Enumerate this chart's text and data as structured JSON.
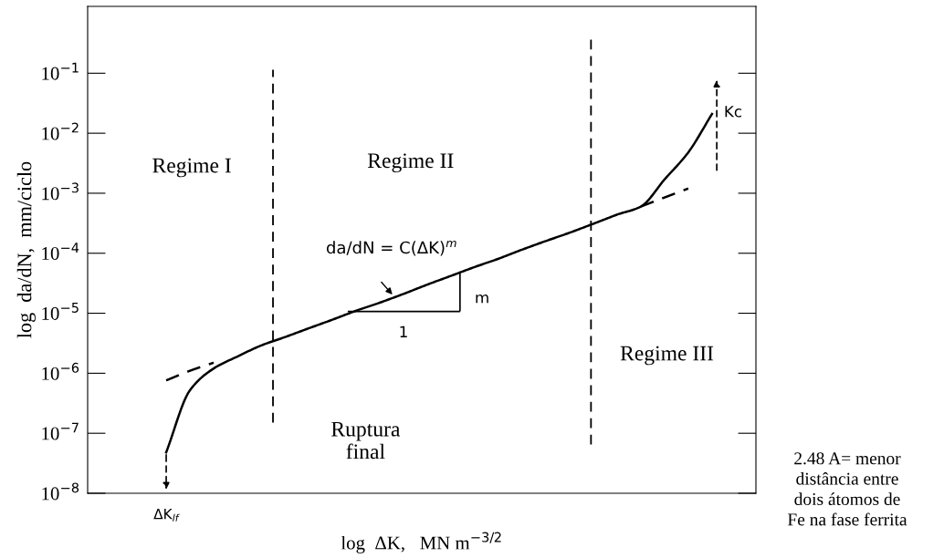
{
  "chart_data": {
    "type": "line",
    "xlabel": "log  ΔK,   MN m$^{−3/2}$",
    "ylabel": "log  da/dN,  mm/ciclo",
    "categories": [
      "ΔK$_{lf}$",
      null,
      null,
      null,
      null,
      null,
      null,
      null,
      null,
      null,
      null,
      null,
      null,
      null,
      null,
      null,
      null,
      null,
      null,
      null,
      null,
      null,
      null,
      null
    ],
    "series": [
      {
        "color": "#000000",
        "line_style": "solid",
        "values": [
          4.8e-08,
          5.2e-07,
          1.2e-06,
          1.9e-06,
          2.9e-06,
          4e-06,
          5.6e-06,
          7.8e-06,
          1.1e-05,
          1.5e-05,
          2.1e-05,
          3e-05,
          4.2e-05,
          5.9e-05,
          8.1e-05,
          0.000115,
          0.00016,
          0.00022,
          0.00031,
          0.00044,
          0.0006,
          0.0017,
          0.0048,
          0.021
        ]
      },
      {
        "color": "#000000",
        "line_style": "dashed",
        "values": [
          7.6e-07,
          1.1e-06,
          1.5e-06,
          null,
          null,
          null,
          null,
          null,
          null,
          null,
          null,
          null,
          null,
          null,
          null,
          null,
          null,
          null,
          null,
          null,
          0.0006,
          0.00085,
          0.0012,
          null
        ]
      }
    ],
    "log": "y",
    "ylim": [
      1e-08,
      1.3
    ],
    "yticks": [
      {
        "value": 1e-08,
        "label": "10$^{−8}$"
      },
      {
        "value": 1e-07,
        "label": "10$^{−7}$"
      },
      {
        "value": 1e-06,
        "label": "10$^{−6}$"
      },
      {
        "value": 1e-05,
        "label": "10$^{−5}$"
      },
      {
        "value": 0.0001,
        "label": "10$^{−4}$"
      },
      {
        "value": 0.001,
        "label": "10$^{−3}$"
      },
      {
        "value": 0.01,
        "label": "10$^{−2}$"
      },
      {
        "value": 0.1,
        "label": "10$^{−1}$"
      }
    ],
    "annotations": [
      "Regime I",
      "Regime II",
      "Regime III",
      "Ruptura\nfinal",
      "da/dN = C(ΔK)$^{m}$",
      "m",
      "1",
      "Kc",
      "2.48 A= menor\ndistância entre\ndois átomos de\nFe na fase ferrita"
    ],
    "grid": false,
    "legend": false
  }
}
